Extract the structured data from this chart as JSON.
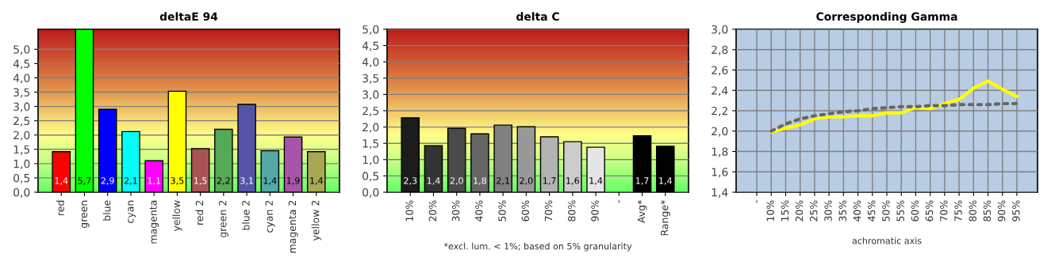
{
  "chart_data": [
    {
      "type": "bar",
      "title": "deltaE 94",
      "categories": [
        "red",
        "green",
        "blue",
        "cyan",
        "magenta",
        "yellow",
        "red 2",
        "green 2",
        "blue 2",
        "cyan 2",
        "magenta 2",
        "yellow 2"
      ],
      "values": [
        1.42,
        5.7,
        2.9,
        2.12,
        1.1,
        3.53,
        1.52,
        2.2,
        3.07,
        1.45,
        1.93,
        1.42
      ],
      "colors": [
        "#ff0000",
        "#00ff00",
        "#0000ff",
        "#00ffff",
        "#ff00ff",
        "#ffff00",
        "#a85454",
        "#55aa55",
        "#5454a8",
        "#54a8a8",
        "#a854a8",
        "#a8a854"
      ],
      "value_labels": [
        "1,4",
        "5,7",
        "2,9",
        "2,1",
        "1,1",
        "3,5",
        "1,5",
        "2,2",
        "3,1",
        "1,4",
        "1,9",
        "1,4"
      ],
      "ylim": [
        0,
        5.7
      ],
      "yticks": [
        {
          "value": 0,
          "label": "0,0"
        },
        {
          "value": 0.5,
          "label": "0,5"
        },
        {
          "value": 1,
          "label": "1,0"
        },
        {
          "value": 1.5,
          "label": "1,5"
        },
        {
          "value": 2,
          "label": "2,0"
        },
        {
          "value": 2.5,
          "label": "2,5"
        },
        {
          "value": 3,
          "label": "3,0"
        },
        {
          "value": 3.5,
          "label": "3,5"
        },
        {
          "value": 4,
          "label": "4,0"
        },
        {
          "value": 4.5,
          "label": "4,5"
        },
        {
          "value": 5,
          "label": "5,0"
        }
      ],
      "grid": "y",
      "legend": false
    },
    {
      "type": "bar",
      "title": "delta C",
      "categories": [
        "10%",
        "20%",
        "30%",
        "40%",
        "50%",
        "60%",
        "70%",
        "80%",
        "90%",
        "-",
        "Avg*",
        "Range*"
      ],
      "values": [
        2.28,
        1.43,
        1.96,
        1.79,
        2.06,
        2.01,
        1.7,
        1.55,
        1.38,
        null,
        1.73,
        1.41
      ],
      "colors": [
        "#1c1c1c",
        "#333333",
        "#4a4a4a",
        "#666666",
        "#808080",
        "#999999",
        "#b3b3b3",
        "#cccccc",
        "#e6e6e6",
        "#000000",
        "#000000",
        "#000000"
      ],
      "value_labels": [
        "2,3",
        "1,4",
        "2,0",
        "1,8",
        "2,1",
        "2,0",
        "1,7",
        "1,6",
        "1,4",
        null,
        "1,7",
        "1,4"
      ],
      "ylim": [
        0,
        5
      ],
      "yticks": [
        {
          "value": 0,
          "label": "0,0"
        },
        {
          "value": 0.5,
          "label": "0,5"
        },
        {
          "value": 1,
          "label": "1,0"
        },
        {
          "value": 1.5,
          "label": "1,5"
        },
        {
          "value": 2,
          "label": "2,0"
        },
        {
          "value": 2.5,
          "label": "2,5"
        },
        {
          "value": 3,
          "label": "3,0"
        },
        {
          "value": 3.5,
          "label": "3,5"
        },
        {
          "value": 4,
          "label": "4,0"
        },
        {
          "value": 4.5,
          "label": "4,5"
        },
        {
          "value": 5,
          "label": "5,0"
        }
      ],
      "annotations": [
        "*excl. lum. < 1%; based on 5% granularity"
      ],
      "grid": "y",
      "legend": false
    },
    {
      "type": "line",
      "title": "Corresponding Gamma",
      "xlabel": "achromatic axis",
      "categories": [
        "-",
        "10%",
        "15%",
        "20%",
        "25%",
        "30%",
        "35%",
        "40%",
        "45%",
        "50%",
        "55%",
        "60%",
        "65%",
        "70%",
        "75%",
        "80%",
        "85%",
        "90%",
        "95%"
      ],
      "series": [
        {
          "color": "#ffff00",
          "line_style": "solid",
          "values": [
            null,
            1.99,
            2.03,
            2.06,
            2.12,
            2.14,
            2.14,
            2.15,
            2.15,
            2.18,
            2.18,
            2.23,
            2.22,
            2.27,
            2.31,
            2.42,
            2.49,
            2.41,
            2.34
          ]
        },
        {
          "color": "#666666",
          "line_style": "dotted",
          "values": [
            null,
            2.0,
            2.07,
            2.12,
            2.15,
            2.17,
            2.19,
            2.2,
            2.22,
            2.23,
            2.24,
            2.24,
            2.25,
            2.25,
            2.26,
            2.26,
            2.26,
            2.27,
            2.27
          ]
        }
      ],
      "ylim": [
        1.4,
        3.0
      ],
      "yticks": [
        {
          "value": 1.4,
          "label": "1,4"
        },
        {
          "value": 1.6,
          "label": "1,6"
        },
        {
          "value": 1.8,
          "label": "1,8"
        },
        {
          "value": 2.0,
          "label": "2,0"
        },
        {
          "value": 2.2,
          "label": "2,2"
        },
        {
          "value": 2.4,
          "label": "2,4"
        },
        {
          "value": 2.6,
          "label": "2,6"
        },
        {
          "value": 2.8,
          "label": "2,8"
        },
        {
          "value": 3.0,
          "label": "3,0"
        }
      ],
      "grid": true,
      "legend": false
    }
  ]
}
